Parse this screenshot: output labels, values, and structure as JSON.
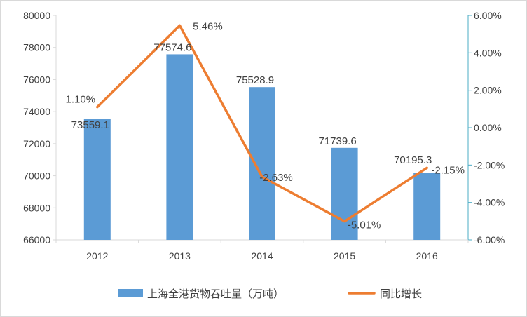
{
  "chart_data": {
    "type": "bar+line",
    "categories": [
      "2012",
      "2013",
      "2014",
      "2015",
      "2016"
    ],
    "series": [
      {
        "name": "上海全港货物吞吐量（万吨）",
        "type": "bar",
        "axis": "left",
        "values": [
          73559.1,
          77574.6,
          75528.9,
          71739.6,
          70195.3
        ],
        "labels": [
          "73559.1",
          "77574.6",
          "75528.9",
          "71739.6",
          "70195.3"
        ],
        "color": "#5b9bd5"
      },
      {
        "name": "同比增长",
        "type": "line",
        "axis": "right",
        "values": [
          1.1,
          5.46,
          -2.63,
          -5.01,
          -2.15
        ],
        "labels": [
          "1.10%",
          "5.46%",
          "-2.63%",
          "-5.01%",
          "-2.15%"
        ],
        "color": "#ed7d31"
      }
    ],
    "y_left": {
      "min": 66000,
      "max": 80000,
      "ticks": [
        "66000",
        "68000",
        "70000",
        "72000",
        "74000",
        "76000",
        "78000",
        "80000"
      ]
    },
    "y_right": {
      "min": -6,
      "max": 6,
      "ticks": [
        "-6.00%",
        "-4.00%",
        "-2.00%",
        "0.00%",
        "2.00%",
        "4.00%",
        "6.00%"
      ]
    },
    "grid": false,
    "legend": "bottom-center",
    "colors": {
      "axis": "#d9d9d9",
      "right_axis": "#4bacc6",
      "text": "#404040"
    }
  }
}
